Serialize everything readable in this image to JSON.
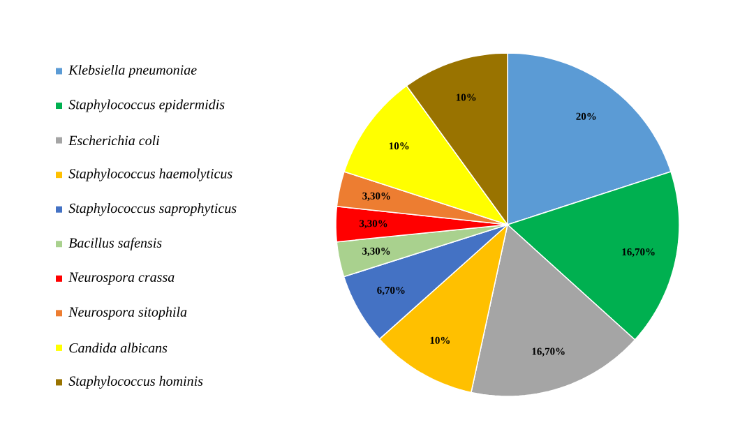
{
  "chart_data": {
    "type": "pie",
    "categories": [
      "Klebsiella pneumoniae",
      "Staphylococcus epidermidis",
      "Escherichia coli",
      "Staphylococcus haemolyticus",
      "Staphylococcus saprophyticus",
      "Bacillus safensis",
      "Neurospora crassa",
      "Neurospora sitophila",
      "Candida albicans",
      "Staphylococcus hominis"
    ],
    "values": [
      20,
      16.7,
      16.7,
      10,
      6.7,
      3.3,
      3.3,
      3.3,
      10,
      10
    ],
    "value_labels": [
      "20%",
      "16,70%",
      "16,70%",
      "10%",
      "6,70%",
      "3,30%",
      "3,30%",
      "3,30%",
      "10%",
      "10%"
    ],
    "colors": [
      "#5b9bd5",
      "#00b050",
      "#a5a5a5",
      "#ffc000",
      "#4472c4",
      "#a9d18e",
      "#ff0000",
      "#ed7d31",
      "#ffff00",
      "#997300"
    ],
    "legend": "left"
  }
}
